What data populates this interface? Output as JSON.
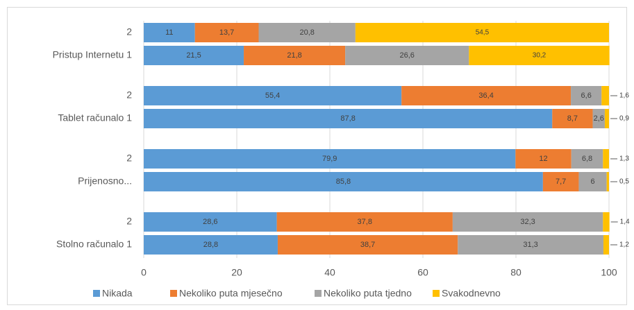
{
  "chart_data": {
    "type": "stacked-barh",
    "categories": [
      "2",
      "Pristup Internetu 1",
      "2",
      "Tablet računalo 1",
      "2",
      "Prijenosno...",
      "2",
      "Stolno računalo 1"
    ],
    "series": [
      {
        "name": "Nikada",
        "color": "#5b9bd5",
        "values": [
          11,
          21.5,
          55.4,
          87.8,
          79.9,
          85.8,
          28.6,
          28.8
        ],
        "value_labels": [
          "11",
          "21,5",
          "55,4",
          "87,8",
          "79,9",
          "85,8",
          "28,6",
          "28,8"
        ]
      },
      {
        "name": "Nekoliko puta mjesečno",
        "color": "#ed7d31",
        "values": [
          13.7,
          21.8,
          36.4,
          8.7,
          12,
          7.7,
          37.8,
          38.7
        ],
        "value_labels": [
          "13,7",
          "21,8",
          "36,4",
          "8,7",
          "12",
          "7,7",
          "37,8",
          "38,7"
        ]
      },
      {
        "name": "Nekoliko puta tjedno",
        "color": "#a5a5a5",
        "values": [
          20.8,
          26.6,
          6.6,
          2.6,
          6.8,
          6,
          32.3,
          31.3
        ],
        "value_labels": [
          "20,8",
          "26,6",
          "6,6",
          "2,6",
          "6,8",
          "6",
          "32,3",
          "31,3"
        ]
      },
      {
        "name": "Svakodnevno",
        "color": "#ffc000",
        "values": [
          54.5,
          30.2,
          1.6,
          0.9,
          1.3,
          0.5,
          1.4,
          1.2
        ],
        "value_labels": [
          "54,5",
          "30,2",
          "1,6",
          "0,9",
          "1,3",
          "0,5",
          "1,4",
          "1,2"
        ]
      }
    ],
    "xlim": [
      0,
      100
    ],
    "xticks": [
      0,
      20,
      40,
      60,
      80,
      100
    ],
    "grid": true,
    "legend": "bottom"
  }
}
